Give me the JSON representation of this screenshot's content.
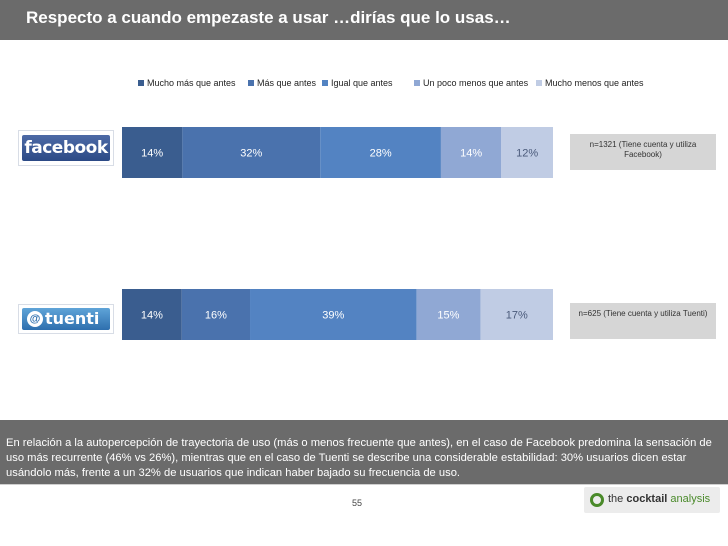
{
  "title": "Respecto a cuando empezaste a usar …dirías que lo usas…",
  "chart_data": {
    "type": "bar",
    "orientation": "horizontal",
    "stacked": true,
    "percent_stacked": true,
    "categories": [
      "Facebook",
      "Tuenti"
    ],
    "series": [
      {
        "name": "Mucho más que antes",
        "values": [
          14,
          14
        ],
        "color": "#3a5d8f"
      },
      {
        "name": "Más que antes",
        "values": [
          32,
          16
        ],
        "color": "#4a72ad"
      },
      {
        "name": "Igual que antes",
        "values": [
          28,
          39
        ],
        "color": "#5383c2"
      },
      {
        "name": "Un poco menos que antes",
        "values": [
          14,
          15
        ],
        "color": "#90a8d4"
      },
      {
        "name": "Mucho menos que antes",
        "values": [
          12,
          17
        ],
        "color": "#c0cce4"
      }
    ],
    "data_labels": [
      [
        "14%",
        "32%",
        "28%",
        "14%",
        "12%"
      ],
      [
        "14%",
        "16%",
        "39%",
        "15%",
        "17%"
      ]
    ],
    "legend": "top"
  },
  "logos": {
    "facebook": "facebook",
    "tuenti": "tuenti",
    "tuenti_mark": "@"
  },
  "notes": {
    "facebook": "n=1321 (Tiene cuenta y utiliza Facebook)",
    "tuenti": "n=625 (Tiene cuenta y utiliza Tuenti)"
  },
  "summary": "En relación a la autopercepción de trayectoria de uso (más o menos frecuente que antes), en el caso de Facebook predomina la sensación de uso más recurrente (46% vs 26%), mientras que en el caso de Tuenti se describe una considerable estabilidad: 30% usuarios dicen estar usándolo más, frente a un 32% de usuarios que indican haber bajado su frecuencia de uso.",
  "footer": {
    "page_number": "55",
    "brand_prefix": "the",
    "brand_bold": "cocktail",
    "brand_suffix": "analysis"
  }
}
